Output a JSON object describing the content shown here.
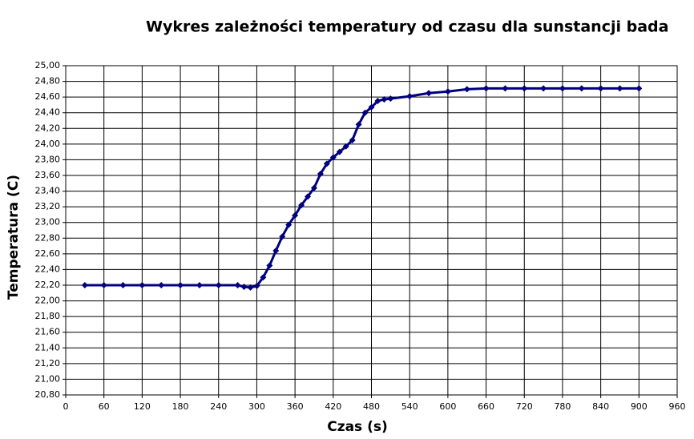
{
  "chart_data": {
    "type": "line",
    "title": "Wykres zależności temperatury od czasu dla sunstancji bada",
    "x_label": "Czas (s)",
    "y_label": "Temperatura (C)",
    "grid": true,
    "xlim": [
      0,
      960
    ],
    "xticks": [
      0,
      60,
      120,
      180,
      240,
      300,
      360,
      420,
      480,
      540,
      600,
      660,
      720,
      780,
      840,
      900,
      960
    ],
    "ylim": [
      20.8,
      25.0
    ],
    "yticks": [
      {
        "value": 20.8,
        "label": "20,80"
      },
      {
        "value": 21.0,
        "label": "21,00"
      },
      {
        "value": 21.2,
        "label": "21,20"
      },
      {
        "value": 21.4,
        "label": "21,40"
      },
      {
        "value": 21.6,
        "label": "21,60"
      },
      {
        "value": 21.8,
        "label": "21,80"
      },
      {
        "value": 22.0,
        "label": "22,00"
      },
      {
        "value": 22.2,
        "label": "22,20"
      },
      {
        "value": 22.4,
        "label": "22,40"
      },
      {
        "value": 22.6,
        "label": "22,60"
      },
      {
        "value": 22.8,
        "label": "22,80"
      },
      {
        "value": 23.0,
        "label": "23,00"
      },
      {
        "value": 23.2,
        "label": "23,20"
      },
      {
        "value": 23.4,
        "label": "23,40"
      },
      {
        "value": 23.6,
        "label": "23,60"
      },
      {
        "value": 23.8,
        "label": "23,80"
      },
      {
        "value": 24.0,
        "label": "24,00"
      },
      {
        "value": 24.2,
        "label": "24,20"
      },
      {
        "value": 24.4,
        "label": "24,40"
      },
      {
        "value": 24.6,
        "label": "24,60"
      },
      {
        "value": 24.8,
        "label": "24,80"
      },
      {
        "value": 25.0,
        "label": "25,00"
      }
    ],
    "x": [
      30,
      60,
      90,
      120,
      150,
      180,
      210,
      240,
      270,
      280,
      290,
      300,
      310,
      320,
      330,
      340,
      350,
      360,
      370,
      380,
      390,
      400,
      410,
      420,
      430,
      440,
      450,
      460,
      470,
      480,
      490,
      500,
      510,
      540,
      570,
      600,
      630,
      660,
      690,
      720,
      750,
      780,
      810,
      840,
      870,
      900
    ],
    "series": [
      {
        "color": "#000080",
        "values": [
          22.2,
          22.2,
          22.2,
          22.2,
          22.2,
          22.2,
          22.2,
          22.2,
          22.2,
          22.18,
          22.17,
          22.19,
          22.3,
          22.45,
          22.64,
          22.82,
          22.97,
          23.09,
          23.22,
          23.33,
          23.44,
          23.62,
          23.75,
          23.83,
          23.9,
          23.97,
          24.05,
          24.25,
          24.4,
          24.47,
          24.55,
          24.57,
          24.58,
          24.61,
          24.65,
          24.67,
          24.7,
          24.71,
          24.71,
          24.71,
          24.71,
          24.71,
          24.71,
          24.71,
          24.71,
          24.71
        ]
      }
    ]
  }
}
